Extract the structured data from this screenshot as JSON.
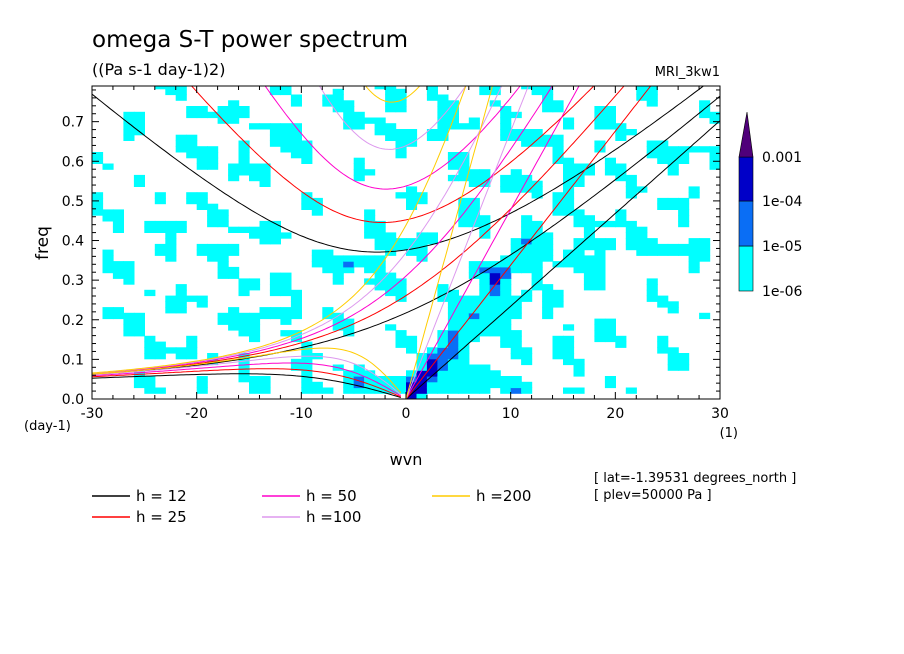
{
  "chart_data": {
    "type": "heatmap",
    "title": "omega S-T power spectrum",
    "subtitle": "((Pa s-1 day-1)2)",
    "model": "MRI_3kw1",
    "xlabel": "wvn",
    "ylabel": "freq",
    "x_unit": "(1)",
    "y_unit": "(day-1)",
    "xlim": [
      -30,
      30
    ],
    "ylim": [
      0,
      0.79
    ],
    "x_ticks": [
      "-30",
      "-20",
      "-10",
      "0",
      "10",
      "20",
      "30"
    ],
    "x_tick_values": [
      -30,
      -20,
      -10,
      0,
      10,
      20,
      30
    ],
    "y_ticks": [
      "0.0",
      "0.1",
      "0.2",
      "0.3",
      "0.4",
      "0.5",
      "0.6",
      "0.7"
    ],
    "y_tick_values": [
      0,
      0.1,
      0.2,
      0.3,
      0.4,
      0.5,
      0.6,
      0.7
    ],
    "colorbar": {
      "labels": [
        "1e-06",
        "1e-05",
        "1e-04",
        "0.001"
      ],
      "levels": [
        1e-06,
        1e-05,
        0.0001,
        0.001
      ],
      "colors": [
        "#00ffff",
        "#0a6ef5",
        "#0000c8",
        "#50007a"
      ],
      "extend": "max"
    },
    "dispersion_curves": [
      {
        "label": "h = 12",
        "h": 12,
        "color": "#000000"
      },
      {
        "label": "h = 25",
        "h": 25,
        "color": "#ff0000"
      },
      {
        "label": "h = 50",
        "h": 50,
        "color": "#ff00cc"
      },
      {
        "label": "h =100",
        "h": 100,
        "color": "#dd99ee"
      },
      {
        "label": "h =200",
        "h": 200,
        "color": "#ffcc00"
      }
    ],
    "annotations": [
      "[ lat=-1.39531 degrees_north ]",
      "[ plev=50000 Pa ]"
    ],
    "grid": false,
    "legend_position": "bottom-left"
  }
}
